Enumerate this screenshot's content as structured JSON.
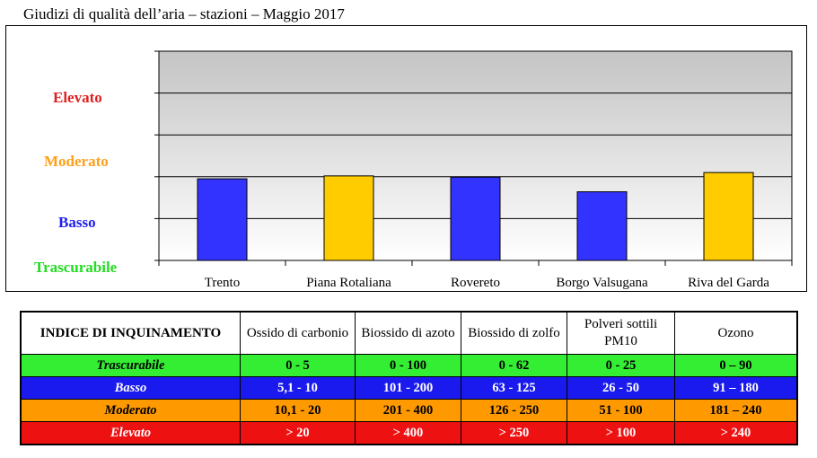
{
  "title": "Giudizi di qualità dell’aria – stazioni – Maggio 2017",
  "levels": {
    "elevato": "Elevato",
    "moderato": "Moderato",
    "basso": "Basso",
    "trascurabile": "Trascurabile"
  },
  "chart_data": {
    "type": "bar",
    "categories": [
      "Trento",
      "Piana Rotaliana",
      "Rovereto",
      "Borgo Valsugana",
      "Riva del Garda"
    ],
    "values": [
      1.95,
      2.02,
      1.99,
      1.64,
      2.1
    ],
    "value_scale": "ordinal level index: 0 = bottom of Trascurabile band, 5 = top of chart",
    "bar_colors": [
      "#3333ff",
      "#ffcc00",
      "#3333ff",
      "#3333ff",
      "#ffcc00"
    ],
    "ylim": [
      0,
      5
    ],
    "y_levels": [
      "Trascurabile",
      "Basso",
      "Moderato",
      "Elevato"
    ],
    "plot_background": "gradient dark-gray (top) to white (bottom)",
    "grid": true
  },
  "table": {
    "header": [
      "INDICE DI INQUINAMENTO",
      "Ossido di carbonio",
      "Biossido di azoto",
      "Biossido di zolfo",
      "Polveri sottili PM10",
      "Ozono"
    ],
    "rows": [
      {
        "level": "Trascurabile",
        "values": [
          "0 - 5",
          "0 - 100",
          "0 - 62",
          "0 - 25",
          "0 – 90"
        ],
        "color": "#33ee33"
      },
      {
        "level": "Basso",
        "values": [
          "5,1 - 10",
          "101 - 200",
          "63 - 125",
          "26 - 50",
          "91 – 180"
        ],
        "color": "#1a1aee"
      },
      {
        "level": "Moderato",
        "values": [
          "10,1 - 20",
          "201 - 400",
          "126 - 250",
          "51 - 100",
          "181 – 240"
        ],
        "color": "#ff9900"
      },
      {
        "level": "Elevato",
        "values": [
          "> 20",
          "> 400",
          "> 250",
          "> 100",
          "> 240"
        ],
        "color": "#ee1111"
      }
    ]
  }
}
